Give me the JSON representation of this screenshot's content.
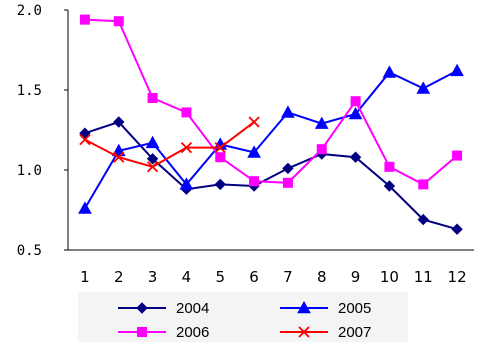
{
  "chart_data": {
    "type": "line",
    "categories": [
      "1",
      "2",
      "3",
      "4",
      "5",
      "6",
      "7",
      "8",
      "9",
      "10",
      "11",
      "12"
    ],
    "y_tick_labels": [
      "2.0",
      "1.5",
      "1.0",
      "0.5"
    ],
    "y_ticks": [
      2.0,
      1.5,
      1.0,
      0.5
    ],
    "ylim": [
      0.5,
      2.0
    ],
    "grid": false,
    "legend_position": "bottom",
    "series": [
      {
        "name": "2004",
        "color": "#000080",
        "marker": "diamond",
        "values": [
          1.23,
          1.3,
          1.07,
          0.88,
          0.91,
          0.9,
          1.01,
          1.1,
          1.08,
          0.9,
          0.69,
          0.63
        ]
      },
      {
        "name": "2005",
        "color": "#0000FF",
        "marker": "triangle",
        "values": [
          0.76,
          1.12,
          1.17,
          0.91,
          1.16,
          1.11,
          1.36,
          1.29,
          1.35,
          1.61,
          1.51,
          1.62
        ]
      },
      {
        "name": "2006",
        "color": "#FF00FF",
        "marker": "square",
        "values": [
          1.94,
          1.93,
          1.45,
          1.36,
          1.08,
          0.93,
          0.92,
          1.13,
          1.43,
          1.02,
          0.91,
          1.09
        ]
      },
      {
        "name": "2007",
        "color": "#FF0000",
        "marker": "x",
        "values": [
          1.19,
          1.08,
          1.02,
          1.14,
          1.14,
          1.3,
          null,
          null,
          null,
          null,
          null,
          null
        ]
      }
    ]
  }
}
